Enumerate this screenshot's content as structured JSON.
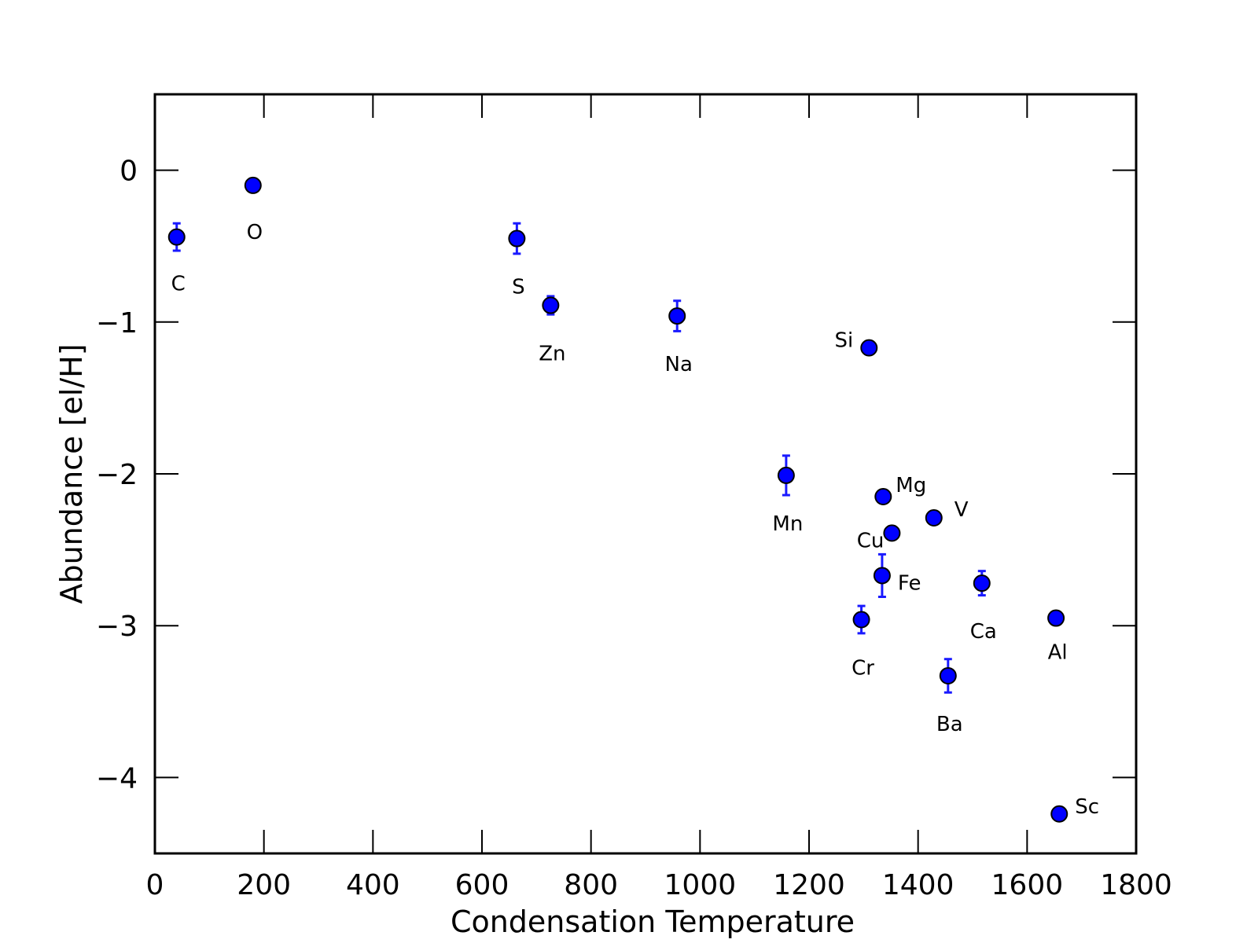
{
  "chart_data": {
    "type": "scatter",
    "title": "",
    "xlabel": "Condensation Temperature",
    "ylabel": "Abundance [el/H]",
    "xlim": [
      0,
      1800
    ],
    "ylim": [
      -4.5,
      0.5
    ],
    "xticks": [
      0,
      200,
      400,
      600,
      800,
      1000,
      1200,
      1400,
      1600,
      1800
    ],
    "xtick_labels": [
      "0",
      "200",
      "400",
      "600",
      "800",
      "1000",
      "1200",
      "1400",
      "1600",
      "1800"
    ],
    "yticks": [
      0,
      -1,
      -2,
      -3,
      -4
    ],
    "ytick_labels": [
      "0",
      "−1",
      "−2",
      "−3",
      "−4"
    ],
    "grid": false,
    "legend": "none",
    "marker_color": "#0000ff",
    "errorbar_color": "#1a1aff",
    "points": [
      {
        "label": "C",
        "x": 40,
        "y": -0.44,
        "err": 0.09
      },
      {
        "label": "O",
        "x": 180,
        "y": -0.1,
        "err": 0
      },
      {
        "label": "S",
        "x": 664,
        "y": -0.45,
        "err": 0.1
      },
      {
        "label": "Zn",
        "x": 726,
        "y": -0.89,
        "err": 0.06
      },
      {
        "label": "Na",
        "x": 958,
        "y": -0.96,
        "err": 0.1
      },
      {
        "label": "Si",
        "x": 1310,
        "y": -1.17,
        "err": 0
      },
      {
        "label": "Mn",
        "x": 1158,
        "y": -2.01,
        "err": 0.13
      },
      {
        "label": "Mg",
        "x": 1336,
        "y": -2.15,
        "err": 0
      },
      {
        "label": "V",
        "x": 1429,
        "y": -2.29,
        "err": 0
      },
      {
        "label": "Cu",
        "x": 1352,
        "y": -2.39,
        "err": 0
      },
      {
        "label": "Fe",
        "x": 1334,
        "y": -2.67,
        "err": 0.14
      },
      {
        "label": "Ca",
        "x": 1517,
        "y": -2.72,
        "err": 0.08
      },
      {
        "label": "Cr",
        "x": 1296,
        "y": -2.96,
        "err": 0.09
      },
      {
        "label": "Al",
        "x": 1653,
        "y": -2.95,
        "err": 0
      },
      {
        "label": "Ba",
        "x": 1455,
        "y": -3.33,
        "err": 0.11
      },
      {
        "label": "Sc",
        "x": 1659,
        "y": -4.24,
        "err": 0
      }
    ]
  }
}
